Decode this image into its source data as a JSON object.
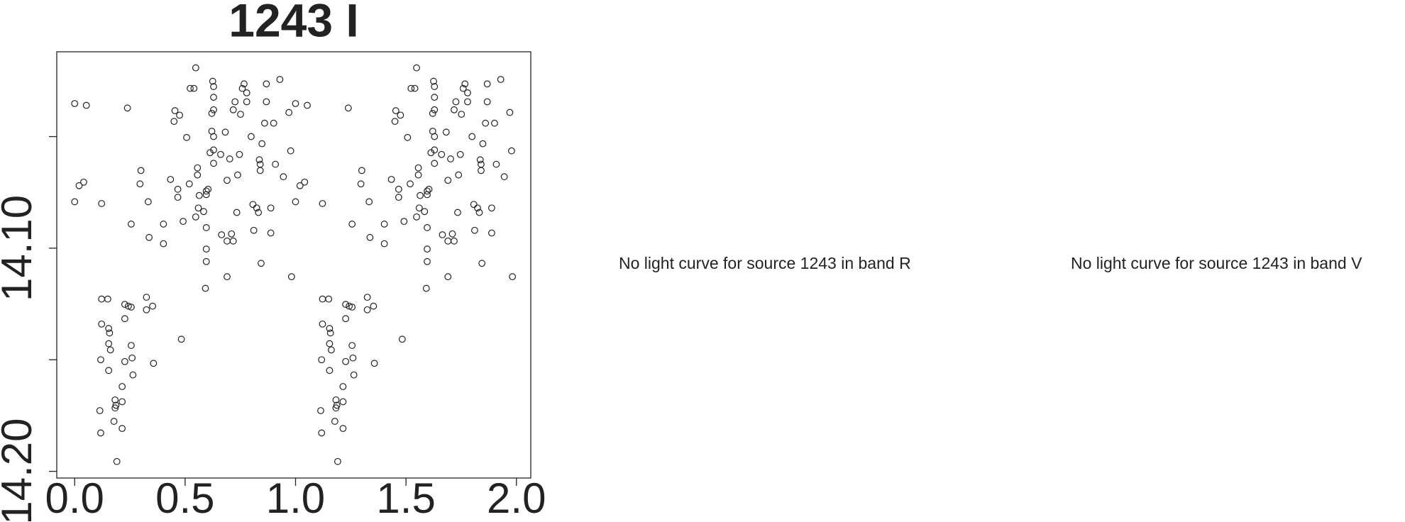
{
  "chart_data": {
    "type": "scatter",
    "title": "1243 I",
    "x": [
      0,
      0.053,
      0,
      0.02,
      0.041,
      0.122,
      0.239,
      0.256,
      0.3,
      0.296,
      0.333,
      0.337,
      0.402,
      0.402,
      0.434,
      0.454,
      0.45,
      0.475,
      0.467,
      0.467,
      0.491,
      0.507,
      0.523,
      0.519,
      0.54,
      0.548,
      0.548,
      0.556,
      0.556,
      0.56,
      0.564,
      0.584,
      0.596,
      0.596,
      0.596,
      0.596,
      0.596,
      0.592,
      0.604,
      0.613,
      0.621,
      0.625,
      0.629,
      0.629,
      0.621,
      0.629,
      0.629,
      0.629,
      0.629,
      0.661,
      0.665,
      0.682,
      0.69,
      0.69,
      0.69,
      0.702,
      0.71,
      0.718,
      0.718,
      0.726,
      0.738,
      0.746,
      0.751,
      0.759,
      0.767,
      0.779,
      0.779,
      0.799,
      0.807,
      0.811,
      0.824,
      0.832,
      0.836,
      0.84,
      0.84,
      0.848,
      0.86,
      0.868,
      0.868,
      0.888,
      0.888,
      0.901,
      0.909,
      0.929,
      0.945,
      0.97,
      0.978,
      0.982,
      0.844,
      0.734,
      0.122,
      0.15,
      0.122,
      0.154,
      0.158,
      0.154,
      0.162,
      0.118,
      0.154,
      0.114,
      0.118,
      0.183,
      0.187,
      0.183,
      0.178,
      0.191,
      0.215,
      0.215,
      0.215,
      0.227,
      0.227,
      0.227,
      0.243,
      0.256,
      0.256,
      0.26,
      0.264,
      0.325,
      0.325,
      0.353,
      0.357,
      0.483,
      1,
      1.053,
      1,
      1.02,
      1.041,
      1.122,
      1.239,
      1.256,
      1.3,
      1.296,
      1.333,
      1.337,
      1.402,
      1.402,
      1.434,
      1.454,
      1.45,
      1.475,
      1.467,
      1.467,
      1.491,
      1.507,
      1.523,
      1.519,
      1.54,
      1.548,
      1.548,
      1.556,
      1.556,
      1.56,
      1.564,
      1.584,
      1.596,
      1.596,
      1.596,
      1.596,
      1.596,
      1.592,
      1.604,
      1.613,
      1.621,
      1.625,
      1.629,
      1.629,
      1.621,
      1.629,
      1.629,
      1.629,
      1.629,
      1.661,
      1.665,
      1.682,
      1.69,
      1.69,
      1.69,
      1.702,
      1.71,
      1.718,
      1.718,
      1.726,
      1.738,
      1.746,
      1.751,
      1.759,
      1.767,
      1.779,
      1.779,
      1.799,
      1.807,
      1.811,
      1.824,
      1.832,
      1.836,
      1.84,
      1.84,
      1.848,
      1.86,
      1.868,
      1.868,
      1.888,
      1.888,
      1.901,
      1.909,
      1.929,
      1.945,
      1.97,
      1.978,
      1.982,
      1.844,
      1.734,
      1.122,
      1.15,
      1.122,
      1.154,
      1.158,
      1.154,
      1.162,
      1.118,
      1.154,
      1.114,
      1.118,
      1.183,
      1.187,
      1.183,
      1.178,
      1.191,
      1.215,
      1.215,
      1.215,
      1.227,
      1.227,
      1.227,
      1.243,
      1.256,
      1.256,
      1.26,
      1.264,
      1.325,
      1.325,
      1.353,
      1.357,
      1.483
    ],
    "values": [
      14.0352,
      14.036,
      14.0792,
      14.072,
      14.0704,
      14.08,
      14.0372,
      14.0892,
      14.0652,
      14.0712,
      14.0792,
      14.0952,
      14.0892,
      14.098,
      14.0692,
      14.0384,
      14.0432,
      14.0404,
      14.0736,
      14.0772,
      14.088,
      14.0504,
      14.0284,
      14.0712,
      14.0284,
      14.0192,
      14.086,
      14.0672,
      14.064,
      14.082,
      14.0764,
      14.0836,
      14.0744,
      14.076,
      14.106,
      14.1004,
      14.0908,
      14.118,
      14.0736,
      14.0572,
      14.0476,
      14.0252,
      14.0276,
      14.0324,
      14.0396,
      14.038,
      14.05,
      14.056,
      14.062,
      14.058,
      14.094,
      14.048,
      14.0696,
      14.0968,
      14.1128,
      14.06,
      14.0936,
      14.0968,
      14.038,
      14.0344,
      14.0672,
      14.058,
      14.04,
      14.0284,
      14.0264,
      14.0304,
      14.0344,
      14.05,
      14.0804,
      14.092,
      14.082,
      14.084,
      14.0604,
      14.0624,
      14.0652,
      14.0532,
      14.044,
      14.0264,
      14.0344,
      14.082,
      14.0932,
      14.044,
      14.0624,
      14.0244,
      14.068,
      14.0392,
      14.0564,
      14.1128,
      14.1068,
      14.084,
      14.1228,
      14.1228,
      14.134,
      14.136,
      14.138,
      14.1428,
      14.1456,
      14.15,
      14.1548,
      14.1728,
      14.1828,
      14.168,
      14.1704,
      14.1716,
      14.1776,
      14.1956,
      14.1808,
      14.1688,
      14.162,
      14.1508,
      14.1316,
      14.1252,
      14.126,
      14.1264,
      14.1436,
      14.1492,
      14.1568,
      14.122,
      14.1276,
      14.126,
      14.1516,
      14.1408,
      14.0352,
      14.036,
      14.0792,
      14.072,
      14.0704,
      14.08,
      14.0372,
      14.0892,
      14.0652,
      14.0712,
      14.0792,
      14.0952,
      14.0892,
      14.098,
      14.0692,
      14.0384,
      14.0432,
      14.0404,
      14.0736,
      14.0772,
      14.088,
      14.0504,
      14.0284,
      14.0712,
      14.0284,
      14.0192,
      14.086,
      14.0672,
      14.064,
      14.082,
      14.0764,
      14.0836,
      14.0744,
      14.076,
      14.106,
      14.1004,
      14.0908,
      14.118,
      14.0736,
      14.0572,
      14.0476,
      14.0252,
      14.0276,
      14.0324,
      14.0396,
      14.038,
      14.05,
      14.056,
      14.062,
      14.058,
      14.094,
      14.048,
      14.0696,
      14.0968,
      14.1128,
      14.06,
      14.0936,
      14.0968,
      14.038,
      14.0344,
      14.0672,
      14.058,
      14.04,
      14.0284,
      14.0264,
      14.0304,
      14.0344,
      14.05,
      14.0804,
      14.092,
      14.082,
      14.084,
      14.0604,
      14.0624,
      14.0652,
      14.0532,
      14.044,
      14.0264,
      14.0344,
      14.082,
      14.0932,
      14.044,
      14.0624,
      14.0244,
      14.068,
      14.0392,
      14.0564,
      14.1128,
      14.1068,
      14.084,
      14.1228,
      14.1228,
      14.134,
      14.136,
      14.138,
      14.1428,
      14.1456,
      14.15,
      14.1548,
      14.1728,
      14.1828,
      14.168,
      14.1704,
      14.1716,
      14.1776,
      14.1956,
      14.1808,
      14.1688,
      14.162,
      14.1508,
      14.1316,
      14.1252,
      14.126,
      14.1264,
      14.1436,
      14.1492,
      14.1568,
      14.122,
      14.1276,
      14.126,
      14.1516,
      14.1408
    ],
    "color": "#222222",
    "xlim": [
      -0.081,
      2.065
    ],
    "xticks": [
      {
        "value": 0,
        "label": "0.0"
      },
      {
        "value": 0.5,
        "label": "0.5"
      },
      {
        "value": 1,
        "label": "1.0"
      },
      {
        "value": 1.5,
        "label": "1.5"
      },
      {
        "value": 2,
        "label": "2.0"
      }
    ],
    "ylim": [
      14.203,
      14.012
    ],
    "yticks": [
      {
        "value": 14.05,
        "label": null
      },
      {
        "value": 14.1,
        "label": "14.10"
      },
      {
        "value": 14.15,
        "label": null
      },
      {
        "value": 14.2,
        "label": "14.20"
      }
    ],
    "grid": false
  },
  "messages": [
    "No light curve for source 1243 in band R",
    "No light curve for source 1243 in band V"
  ]
}
